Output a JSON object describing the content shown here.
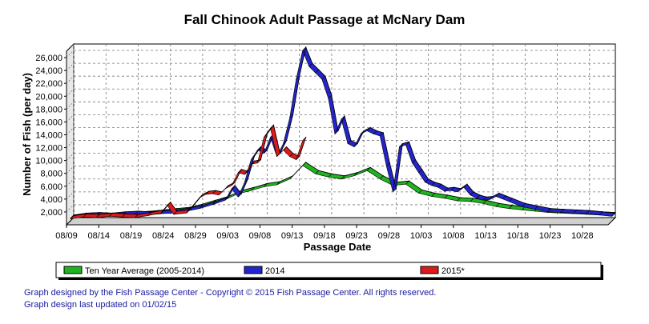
{
  "chart_data": {
    "type": "line",
    "title": "Fall Chinook Adult Passage at McNary Dam",
    "xlabel": "Passage Date",
    "ylabel": "Number of Fish (per day)",
    "ylim": [
      0,
      27000
    ],
    "yticks": [
      "2,000",
      "4,000",
      "6,000",
      "8,000",
      "10,000",
      "12,000",
      "14,000",
      "16,000",
      "18,000",
      "20,000",
      "22,000",
      "24,000",
      "26,000"
    ],
    "x_start": "08/09",
    "x_end": "11/01",
    "xticks": [
      "08/09",
      "08/14",
      "08/19",
      "08/24",
      "08/29",
      "09/03",
      "09/08",
      "09/13",
      "09/18",
      "09/23",
      "09/28",
      "10/03",
      "10/08",
      "10/13",
      "10/18",
      "10/23",
      "10/28"
    ],
    "grid": "dashed horizontal and vertical",
    "legend_position": "below plot",
    "series": [
      {
        "name": "Ten Year Average (2005-2014)",
        "color": "#1fb41f",
        "x": [
          "08/09",
          "08/11",
          "08/13",
          "08/15",
          "08/17",
          "08/19",
          "08/21",
          "08/23",
          "08/25",
          "08/27",
          "08/29",
          "08/31",
          "09/02",
          "09/04",
          "09/06",
          "09/08",
          "09/10",
          "09/12",
          "09/14",
          "09/16",
          "09/18",
          "09/20",
          "09/22",
          "09/24",
          "09/26",
          "09/28",
          "09/30",
          "10/02",
          "10/04",
          "10/06",
          "10/08",
          "10/10",
          "10/12",
          "10/14",
          "10/16",
          "10/18",
          "10/20",
          "10/22",
          "10/24",
          "10/26",
          "10/28",
          "10/30",
          "11/01"
        ],
        "values": [
          400,
          600,
          700,
          700,
          800,
          900,
          1000,
          1200,
          1400,
          1600,
          2100,
          2700,
          3300,
          4200,
          4700,
          5300,
          5600,
          6500,
          8600,
          7300,
          6800,
          6500,
          7000,
          7800,
          6500,
          5500,
          5700,
          4300,
          3800,
          3500,
          3100,
          3000,
          2700,
          2200,
          1900,
          1700,
          1500,
          1300,
          1200,
          1100,
          1000,
          900,
          800
        ]
      },
      {
        "name": "2014",
        "color": "#2424cc",
        "x": [
          "08/09",
          "08/11",
          "08/13",
          "08/15",
          "08/17",
          "08/19",
          "08/21",
          "08/23",
          "08/25",
          "08/27",
          "08/29",
          "08/31",
          "09/02",
          "09/03",
          "09/04",
          "09/05",
          "09/06",
          "09/07",
          "09/08",
          "09/09",
          "09/10",
          "09/11",
          "09/12",
          "09/13",
          "09/14",
          "09/15",
          "09/16",
          "09/17",
          "09/18",
          "09/19",
          "09/20",
          "09/21",
          "09/22",
          "09/23",
          "09/24",
          "09/25",
          "09/26",
          "09/27",
          "09/28",
          "09/29",
          "09/30",
          "10/01",
          "10/02",
          "10/03",
          "10/04",
          "10/05",
          "10/06",
          "10/07",
          "10/08",
          "10/09",
          "10/10",
          "10/11",
          "10/12",
          "10/13",
          "10/14",
          "10/15",
          "10/16",
          "10/18",
          "10/20",
          "10/22",
          "10/24",
          "10/26",
          "10/28",
          "10/30",
          "11/01"
        ],
        "values": [
          400,
          700,
          800,
          700,
          900,
          1000,
          900,
          1100,
          1200,
          1500,
          1900,
          2500,
          3200,
          5000,
          3700,
          6000,
          9500,
          11000,
          10500,
          13000,
          10000,
          12000,
          16000,
          22000,
          26500,
          24000,
          23000,
          22000,
          19000,
          13500,
          15800,
          12000,
          11500,
          13500,
          14000,
          13500,
          13200,
          8500,
          4500,
          11500,
          11800,
          9000,
          7500,
          6000,
          5500,
          5200,
          4600,
          4700,
          4500,
          5200,
          4000,
          3500,
          3200,
          3300,
          3800,
          3400,
          3000,
          2200,
          1800,
          1400,
          1300,
          1200,
          1100,
          900,
          700
        ]
      },
      {
        "name": "2015*",
        "color": "#dd1a1a",
        "x": [
          "08/09",
          "08/11",
          "08/13",
          "08/15",
          "08/17",
          "08/19",
          "08/21",
          "08/23",
          "08/24",
          "08/25",
          "08/27",
          "08/29",
          "08/30",
          "08/31",
          "09/01",
          "09/02",
          "09/03",
          "09/04",
          "09/05",
          "09/06",
          "09/07",
          "09/08",
          "09/09",
          "09/10",
          "09/11",
          "09/12",
          "09/13",
          "09/14"
        ],
        "values": [
          300,
          600,
          500,
          700,
          600,
          500,
          800,
          1200,
          2400,
          1000,
          1200,
          3600,
          4100,
          4200,
          4000,
          5000,
          5500,
          7500,
          7200,
          8800,
          9000,
          13000,
          14400,
          10000,
          11000,
          10000,
          9500,
          12500
        ]
      }
    ]
  },
  "footer": {
    "line1": "Graph designed by the Fish Passage Center - Copyright © 2015 Fish Passage Center. All rights reserved.",
    "line2": "Graph design last updated on 01/02/15"
  }
}
